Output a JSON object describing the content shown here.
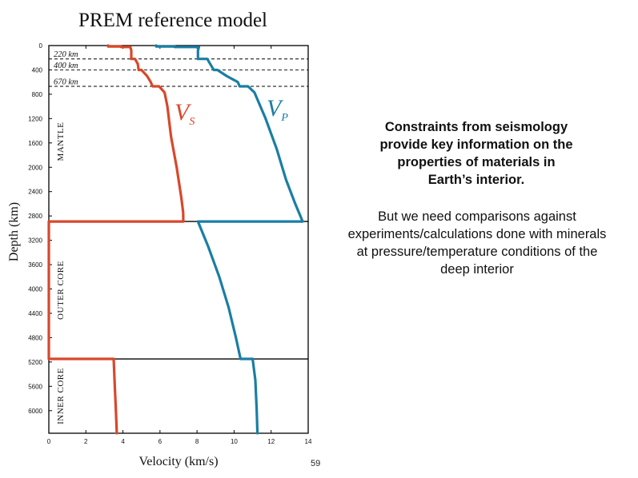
{
  "page_number": "59",
  "text_block": {
    "bold_lines": [
      "Constraints from seismology",
      "provide key information on the",
      "properties of materials in",
      "Earth’s interior."
    ],
    "normal_lines": [
      "But we need comparisons against",
      "experiments/calculations done with minerals",
      "at pressure/temperature conditions of the",
      "deep interior"
    ]
  },
  "colors": {
    "vs": "#d9472b",
    "vp": "#1a7ea3",
    "axis": "#000000",
    "dashed": "#000000"
  },
  "chart_data": {
    "type": "line",
    "title": "PREM reference model",
    "xlabel": "Velocity (km/s)",
    "ylabel": "Depth (km)",
    "xlim": [
      0,
      14
    ],
    "ylim": [
      6371,
      0
    ],
    "x_ticks": [
      0,
      2,
      4,
      6,
      8,
      10,
      12,
      14
    ],
    "y_ticks": [
      0,
      400,
      800,
      1200,
      1600,
      2000,
      2400,
      2800,
      3200,
      3600,
      4000,
      4400,
      4800,
      5200,
      5600,
      6000
    ],
    "discontinuities": [
      {
        "depth": 220,
        "label": "220 km",
        "style": "dashed"
      },
      {
        "depth": 400,
        "label": "400 km",
        "style": "dashed"
      },
      {
        "depth": 670,
        "label": "670 km",
        "style": "dashed"
      },
      {
        "depth": 2891,
        "label": "",
        "style": "solid"
      },
      {
        "depth": 5150,
        "label": "",
        "style": "solid"
      }
    ],
    "regions": [
      {
        "label": "MANTLE",
        "from": 0,
        "to": 2891
      },
      {
        "label": "OUTER CORE",
        "from": 2891,
        "to": 5150
      },
      {
        "label": "INNER CORE",
        "from": 5150,
        "to": 6371
      }
    ],
    "series": [
      {
        "name": "V",
        "subscript": "S",
        "color": "#d9472b",
        "points": [
          [
            3.2,
            0
          ],
          [
            3.2,
            15
          ],
          [
            3.9,
            15
          ],
          [
            3.9,
            24
          ],
          [
            4.4,
            24
          ],
          [
            4.45,
            80
          ],
          [
            4.45,
            220
          ],
          [
            4.65,
            220
          ],
          [
            4.8,
            300
          ],
          [
            4.85,
            400
          ],
          [
            5.0,
            400
          ],
          [
            5.3,
            500
          ],
          [
            5.5,
            600
          ],
          [
            5.6,
            670
          ],
          [
            5.95,
            670
          ],
          [
            6.25,
            771
          ],
          [
            6.4,
            1000
          ],
          [
            6.6,
            1500
          ],
          [
            6.9,
            2000
          ],
          [
            7.15,
            2500
          ],
          [
            7.25,
            2741
          ],
          [
            7.26,
            2891
          ],
          [
            0,
            2891
          ],
          [
            0,
            5150
          ],
          [
            3.5,
            5150
          ],
          [
            3.56,
            5600
          ],
          [
            3.62,
            6000
          ],
          [
            3.67,
            6371
          ]
        ]
      },
      {
        "name": "V",
        "subscript": "P",
        "color": "#1a7ea3",
        "points": [
          [
            5.8,
            0
          ],
          [
            5.8,
            15
          ],
          [
            6.8,
            15
          ],
          [
            6.8,
            24
          ],
          [
            8.1,
            24
          ],
          [
            8.05,
            80
          ],
          [
            8.05,
            220
          ],
          [
            8.55,
            220
          ],
          [
            8.9,
            400
          ],
          [
            9.1,
            400
          ],
          [
            9.6,
            500
          ],
          [
            10.2,
            600
          ],
          [
            10.3,
            670
          ],
          [
            10.75,
            670
          ],
          [
            11.1,
            771
          ],
          [
            11.7,
            1200
          ],
          [
            12.3,
            1700
          ],
          [
            12.8,
            2200
          ],
          [
            13.3,
            2600
          ],
          [
            13.7,
            2891
          ],
          [
            8.05,
            2891
          ],
          [
            8.6,
            3300
          ],
          [
            9.2,
            3800
          ],
          [
            9.7,
            4300
          ],
          [
            10.1,
            4800
          ],
          [
            10.35,
            5150
          ],
          [
            11.0,
            5150
          ],
          [
            11.15,
            5500
          ],
          [
            11.22,
            6000
          ],
          [
            11.26,
            6371
          ]
        ]
      }
    ]
  }
}
